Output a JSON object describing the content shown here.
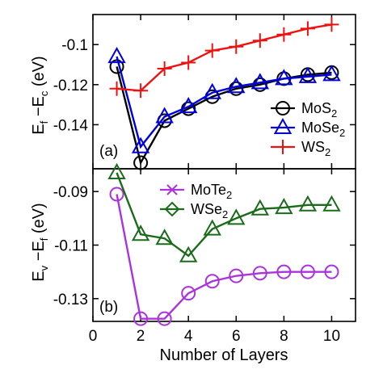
{
  "chart_data": [
    {
      "type": "line",
      "panel_label": "(a)",
      "ylabel_main": "E",
      "ylabel_sub1": "f",
      "ylabel_mid": " −E",
      "ylabel_sub2": "c",
      "ylabel_unit": " (eV)",
      "xlim": [
        0,
        11
      ],
      "ylim": [
        -0.162,
        -0.085
      ],
      "yticks": [
        -0.14,
        -0.12,
        -0.1
      ],
      "ytick_labels": [
        "-0.14",
        "-0.12",
        "-0.1"
      ],
      "legend_position": "center-right",
      "x": [
        1,
        2,
        3,
        4,
        5,
        6,
        7,
        8,
        9,
        10
      ],
      "series": [
        {
          "name": "MoS2",
          "name_main": "MoS",
          "name_sub": "2",
          "color": "#000000",
          "marker": "circle",
          "values": [
            -0.111,
            -0.159,
            -0.138,
            -0.132,
            -0.126,
            -0.122,
            -0.12,
            -0.117,
            -0.115,
            -0.114
          ]
        },
        {
          "name": "MoSe2",
          "name_main": "MoSe",
          "name_sub": "2",
          "color": "#0000dd",
          "marker": "triangle",
          "values": [
            -0.106,
            -0.151,
            -0.136,
            -0.131,
            -0.124,
            -0.121,
            -0.119,
            -0.117,
            -0.116,
            -0.115
          ]
        },
        {
          "name": "WS2",
          "name_main": "WS",
          "name_sub": "2",
          "color": "#ee1111",
          "marker": "plus",
          "values": [
            -0.122,
            -0.123,
            -0.112,
            -0.109,
            -0.103,
            -0.101,
            -0.098,
            -0.095,
            -0.092,
            -0.09
          ]
        }
      ]
    },
    {
      "type": "line",
      "panel_label": "(b)",
      "ylabel_main": "E",
      "ylabel_sub1": "v",
      "ylabel_mid": " −E",
      "ylabel_sub2": "f",
      "ylabel_unit": " (eV)",
      "xlabel": "Number of Layers",
      "xlim": [
        0,
        11
      ],
      "ylim": [
        -0.1385,
        -0.0815
      ],
      "xticks": [
        0,
        2,
        4,
        6,
        8,
        10
      ],
      "xtick_labels": [
        "0",
        "2",
        "4",
        "6",
        "8",
        "10"
      ],
      "yticks": [
        -0.13,
        -0.11,
        -0.09
      ],
      "ytick_labels": [
        "-0.13",
        "-0.11",
        "-0.09"
      ],
      "legend_position": "top-center",
      "x": [
        1,
        2,
        3,
        4,
        5,
        6,
        7,
        8,
        9,
        10
      ],
      "series": [
        {
          "name": "MoTe2",
          "name_main": "MoTe",
          "name_sub": "2",
          "color": "#aa33dd",
          "marker": "circle",
          "legend_marker": "x",
          "values": [
            -0.091,
            -0.1375,
            -0.1375,
            -0.128,
            -0.1235,
            -0.1215,
            -0.1205,
            -0.12,
            -0.12,
            -0.12
          ]
        },
        {
          "name": "WSe2",
          "name_main": "WSe",
          "name_sub": "2",
          "color": "#1a6b1a",
          "marker": "triangle",
          "legend_marker": "diamond",
          "values": [
            -0.083,
            -0.106,
            -0.1075,
            -0.114,
            -0.104,
            -0.1,
            -0.0965,
            -0.096,
            -0.095,
            -0.095
          ]
        }
      ]
    }
  ]
}
